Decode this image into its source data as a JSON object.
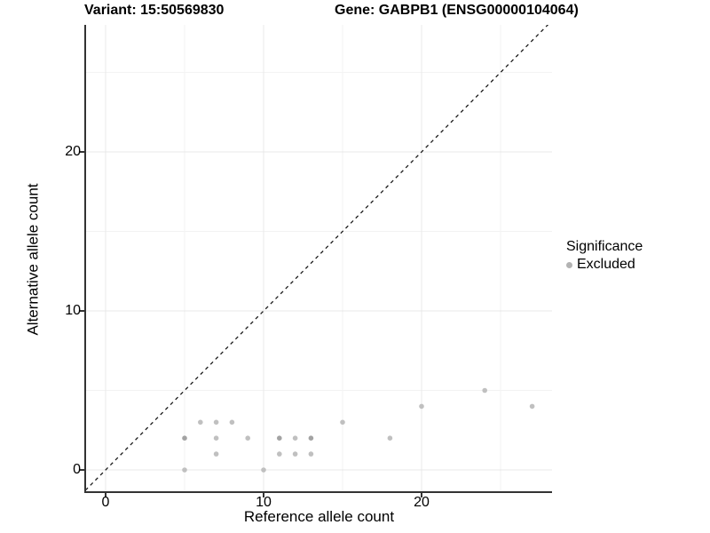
{
  "titles": {
    "variant": "Variant: 15:50569830",
    "gene": "Gene: GABPB1 (ENSG00000104064)"
  },
  "chart_data": {
    "type": "scatter",
    "xlabel": "Reference allele count",
    "ylabel": "Alternative allele count",
    "x_major_ticks": [
      0,
      10,
      20
    ],
    "y_major_ticks": [
      0,
      10,
      20
    ],
    "x_minor_ticks": [
      5,
      15,
      25
    ],
    "y_minor_ticks": [
      5,
      15,
      25
    ],
    "xlim": [
      -1.24,
      28.3
    ],
    "ylim": [
      -1.3,
      28.0
    ],
    "grid": "on",
    "identity_line": {
      "type": "abline",
      "slope": 1,
      "intercept": 0,
      "style": "dashed",
      "color": "#1a1a1a"
    },
    "points": [
      {
        "x": 5,
        "y": 0,
        "shade": "normal"
      },
      {
        "x": 10,
        "y": 0,
        "shade": "normal"
      },
      {
        "x": 7,
        "y": 1,
        "shade": "normal"
      },
      {
        "x": 11,
        "y": 1,
        "shade": "normal"
      },
      {
        "x": 12,
        "y": 1,
        "shade": "normal"
      },
      {
        "x": 13,
        "y": 1,
        "shade": "normal"
      },
      {
        "x": 5,
        "y": 2,
        "shade": "dark"
      },
      {
        "x": 7,
        "y": 2,
        "shade": "normal"
      },
      {
        "x": 9,
        "y": 2,
        "shade": "normal"
      },
      {
        "x": 11,
        "y": 2,
        "shade": "dark"
      },
      {
        "x": 12,
        "y": 2,
        "shade": "normal"
      },
      {
        "x": 13,
        "y": 2,
        "shade": "dark"
      },
      {
        "x": 18,
        "y": 2,
        "shade": "normal"
      },
      {
        "x": 6,
        "y": 3,
        "shade": "normal"
      },
      {
        "x": 7,
        "y": 3,
        "shade": "normal"
      },
      {
        "x": 8,
        "y": 3,
        "shade": "normal"
      },
      {
        "x": 15,
        "y": 3,
        "shade": "normal"
      },
      {
        "x": 20,
        "y": 4,
        "shade": "normal"
      },
      {
        "x": 27,
        "y": 4,
        "shade": "normal"
      },
      {
        "x": 24,
        "y": 5,
        "shade": "normal"
      }
    ],
    "colors": {
      "point_normal": "#c0c0c0",
      "point_dark": "#a3a3a3",
      "grid_major": "#e8e8e8",
      "grid_minor": "#f3f3f3",
      "axis_line": "#333333"
    },
    "legend": {
      "title": "Significance",
      "position": "right",
      "items": [
        {
          "label": "Excluded",
          "color": "#b3b3b3"
        }
      ]
    }
  }
}
